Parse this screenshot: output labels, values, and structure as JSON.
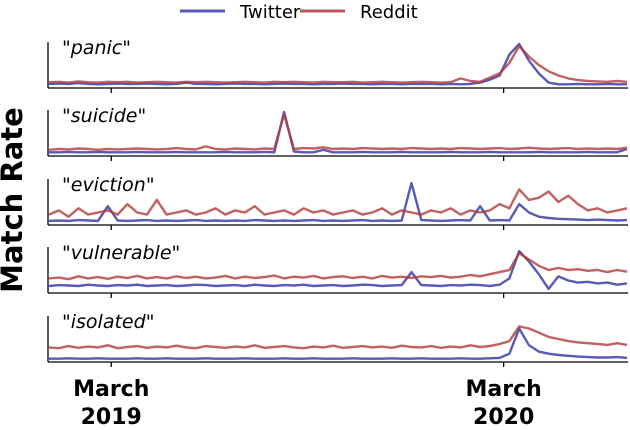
{
  "chart_data": {
    "type": "line",
    "ylabel": "Match Rate",
    "xlim": [
      "2019-01-01",
      "2020-06-25"
    ],
    "x_ticks": [
      {
        "date": "2019-03-01",
        "label_line1": "March",
        "label_line2": "2019"
      },
      {
        "date": "2020-03-01",
        "label_line1": "March",
        "label_line2": "2020"
      }
    ],
    "y_ticks_shown": false,
    "grid": false,
    "legend": {
      "placement": "top-center",
      "entries": [
        "Twitter",
        "Reddit"
      ]
    },
    "colors": {
      "Twitter": "#3c3cac",
      "Reddit": "#b23a3a"
    },
    "y_units": "relative",
    "panels": [
      {
        "title_open": "\"",
        "title_word": "panic",
        "title_close": "\"",
        "series": [
          {
            "name": "Twitter",
            "values": [
              0.05,
              0.06,
              0.05,
              0.07,
              0.05,
              0.04,
              0.05,
              0.06,
              0.05,
              0.05,
              0.06,
              0.05,
              0.04,
              0.05,
              0.08,
              0.05,
              0.05,
              0.04,
              0.05,
              0.06,
              0.05,
              0.05,
              0.04,
              0.05,
              0.06,
              0.05,
              0.05,
              0.04,
              0.05,
              0.05,
              0.06,
              0.05,
              0.05,
              0.04,
              0.05,
              0.05,
              0.04,
              0.05,
              0.05,
              0.05,
              0.04,
              0.05,
              0.04,
              0.05,
              0.08,
              0.15,
              0.25,
              0.75,
              1.0,
              0.6,
              0.3,
              0.08,
              0.04,
              0.04,
              0.05,
              0.04,
              0.04,
              0.05,
              0.04,
              0.04
            ]
          },
          {
            "name": "Reddit",
            "values": [
              0.09,
              0.1,
              0.08,
              0.11,
              0.09,
              0.08,
              0.1,
              0.09,
              0.1,
              0.08,
              0.09,
              0.1,
              0.09,
              0.08,
              0.1,
              0.09,
              0.1,
              0.09,
              0.08,
              0.09,
              0.1,
              0.09,
              0.08,
              0.1,
              0.09,
              0.1,
              0.09,
              0.08,
              0.1,
              0.09,
              0.09,
              0.1,
              0.08,
              0.09,
              0.1,
              0.09,
              0.08,
              0.09,
              0.1,
              0.09,
              0.08,
              0.09,
              0.18,
              0.12,
              0.1,
              0.2,
              0.3,
              0.55,
              0.95,
              0.7,
              0.5,
              0.35,
              0.25,
              0.18,
              0.14,
              0.12,
              0.11,
              0.1,
              0.12,
              0.1
            ]
          }
        ]
      },
      {
        "title_open": "\"",
        "title_word": "suicide",
        "title_close": "\"",
        "series": [
          {
            "name": "Twitter",
            "values": [
              0.04,
              0.04,
              0.05,
              0.04,
              0.04,
              0.05,
              0.04,
              0.04,
              0.04,
              0.05,
              0.04,
              0.04,
              0.04,
              0.05,
              0.04,
              0.04,
              0.04,
              0.04,
              0.05,
              0.04,
              0.04,
              0.04,
              0.05,
              0.04,
              1.0,
              0.06,
              0.04,
              0.04,
              0.1,
              0.04,
              0.04,
              0.04,
              0.05,
              0.04,
              0.04,
              0.04,
              0.05,
              0.04,
              0.04,
              0.04,
              0.04,
              0.05,
              0.04,
              0.04,
              0.04,
              0.05,
              0.04,
              0.04,
              0.04,
              0.04,
              0.05,
              0.04,
              0.04,
              0.04,
              0.04,
              0.05,
              0.04,
              0.04,
              0.04,
              0.12
            ]
          },
          {
            "name": "Reddit",
            "values": [
              0.1,
              0.12,
              0.11,
              0.13,
              0.12,
              0.1,
              0.12,
              0.11,
              0.12,
              0.13,
              0.12,
              0.11,
              0.12,
              0.14,
              0.12,
              0.11,
              0.18,
              0.12,
              0.11,
              0.13,
              0.12,
              0.11,
              0.13,
              0.12,
              0.95,
              0.12,
              0.14,
              0.13,
              0.16,
              0.12,
              0.13,
              0.12,
              0.14,
              0.13,
              0.12,
              0.13,
              0.12,
              0.14,
              0.13,
              0.12,
              0.13,
              0.12,
              0.14,
              0.13,
              0.12,
              0.13,
              0.14,
              0.12,
              0.13,
              0.15,
              0.13,
              0.12,
              0.13,
              0.14,
              0.12,
              0.13,
              0.12,
              0.13,
              0.12,
              0.15
            ]
          }
        ]
      },
      {
        "title_open": "\"",
        "title_word": "eviction",
        "title_close": "\"",
        "series": [
          {
            "name": "Twitter",
            "values": [
              0.05,
              0.06,
              0.05,
              0.07,
              0.06,
              0.05,
              0.4,
              0.06,
              0.05,
              0.06,
              0.07,
              0.05,
              0.06,
              0.05,
              0.06,
              0.07,
              0.05,
              0.06,
              0.05,
              0.06,
              0.05,
              0.07,
              0.06,
              0.05,
              0.06,
              0.05,
              0.06,
              0.07,
              0.05,
              0.06,
              0.05,
              0.06,
              0.07,
              0.05,
              0.06,
              0.05,
              0.06,
              0.95,
              0.07,
              0.06,
              0.05,
              0.06,
              0.07,
              0.06,
              0.4,
              0.06,
              0.07,
              0.06,
              0.45,
              0.25,
              0.15,
              0.12,
              0.1,
              0.09,
              0.08,
              0.07,
              0.08,
              0.07,
              0.06,
              0.07
            ]
          },
          {
            "name": "Reddit",
            "values": [
              0.2,
              0.3,
              0.15,
              0.35,
              0.2,
              0.25,
              0.3,
              0.2,
              0.45,
              0.25,
              0.2,
              0.55,
              0.2,
              0.25,
              0.3,
              0.2,
              0.25,
              0.35,
              0.2,
              0.3,
              0.25,
              0.4,
              0.2,
              0.25,
              0.3,
              0.2,
              0.35,
              0.25,
              0.3,
              0.2,
              0.25,
              0.3,
              0.2,
              0.25,
              0.35,
              0.2,
              0.3,
              0.25,
              0.2,
              0.3,
              0.25,
              0.35,
              0.2,
              0.3,
              0.25,
              0.3,
              0.45,
              0.35,
              0.8,
              0.55,
              0.6,
              0.75,
              0.5,
              0.65,
              0.45,
              0.3,
              0.35,
              0.25,
              0.3,
              0.35
            ]
          }
        ]
      },
      {
        "title_open": "\"",
        "title_word": "vulnerable",
        "title_close": "\"",
        "series": [
          {
            "name": "Twitter",
            "values": [
              0.12,
              0.14,
              0.13,
              0.12,
              0.15,
              0.13,
              0.12,
              0.14,
              0.13,
              0.15,
              0.12,
              0.13,
              0.14,
              0.12,
              0.13,
              0.15,
              0.14,
              0.12,
              0.13,
              0.14,
              0.12,
              0.15,
              0.13,
              0.12,
              0.14,
              0.13,
              0.15,
              0.12,
              0.13,
              0.14,
              0.12,
              0.13,
              0.15,
              0.14,
              0.12,
              0.13,
              0.14,
              0.45,
              0.14,
              0.13,
              0.12,
              0.14,
              0.13,
              0.15,
              0.14,
              0.12,
              0.15,
              0.3,
              0.95,
              0.7,
              0.4,
              0.05,
              0.35,
              0.25,
              0.2,
              0.22,
              0.18,
              0.2,
              0.15,
              0.18
            ]
          },
          {
            "name": "Reddit",
            "values": [
              0.3,
              0.32,
              0.28,
              0.35,
              0.3,
              0.33,
              0.29,
              0.34,
              0.31,
              0.36,
              0.3,
              0.33,
              0.3,
              0.35,
              0.31,
              0.34,
              0.3,
              0.32,
              0.36,
              0.3,
              0.34,
              0.31,
              0.33,
              0.37,
              0.3,
              0.34,
              0.32,
              0.36,
              0.3,
              0.33,
              0.35,
              0.31,
              0.34,
              0.3,
              0.36,
              0.32,
              0.34,
              0.31,
              0.35,
              0.33,
              0.36,
              0.32,
              0.34,
              0.38,
              0.35,
              0.4,
              0.45,
              0.5,
              0.9,
              0.75,
              0.6,
              0.5,
              0.55,
              0.5,
              0.52,
              0.48,
              0.5,
              0.45,
              0.5,
              0.46
            ]
          }
        ]
      },
      {
        "title_open": "\"",
        "title_word": "isolated",
        "title_close": "\"",
        "series": [
          {
            "name": "Twitter",
            "values": [
              0.03,
              0.03,
              0.04,
              0.03,
              0.03,
              0.04,
              0.03,
              0.03,
              0.03,
              0.04,
              0.03,
              0.03,
              0.04,
              0.03,
              0.03,
              0.03,
              0.04,
              0.03,
              0.03,
              0.03,
              0.04,
              0.03,
              0.03,
              0.03,
              0.04,
              0.03,
              0.03,
              0.04,
              0.03,
              0.03,
              0.03,
              0.04,
              0.03,
              0.03,
              0.03,
              0.04,
              0.03,
              0.03,
              0.04,
              0.03,
              0.03,
              0.03,
              0.04,
              0.03,
              0.03,
              0.04,
              0.05,
              0.15,
              0.75,
              0.35,
              0.2,
              0.15,
              0.12,
              0.1,
              0.08,
              0.07,
              0.06,
              0.06,
              0.07,
              0.05
            ]
          },
          {
            "name": "Reddit",
            "values": [
              0.3,
              0.28,
              0.33,
              0.29,
              0.32,
              0.3,
              0.35,
              0.28,
              0.31,
              0.33,
              0.29,
              0.32,
              0.3,
              0.34,
              0.3,
              0.28,
              0.33,
              0.31,
              0.29,
              0.32,
              0.3,
              0.35,
              0.29,
              0.31,
              0.33,
              0.3,
              0.28,
              0.32,
              0.3,
              0.34,
              0.29,
              0.31,
              0.33,
              0.3,
              0.32,
              0.29,
              0.34,
              0.31,
              0.3,
              0.33,
              0.29,
              0.32,
              0.3,
              0.35,
              0.31,
              0.33,
              0.38,
              0.45,
              0.8,
              0.75,
              0.65,
              0.55,
              0.5,
              0.45,
              0.42,
              0.4,
              0.38,
              0.36,
              0.4,
              0.36
            ]
          }
        ]
      }
    ]
  }
}
